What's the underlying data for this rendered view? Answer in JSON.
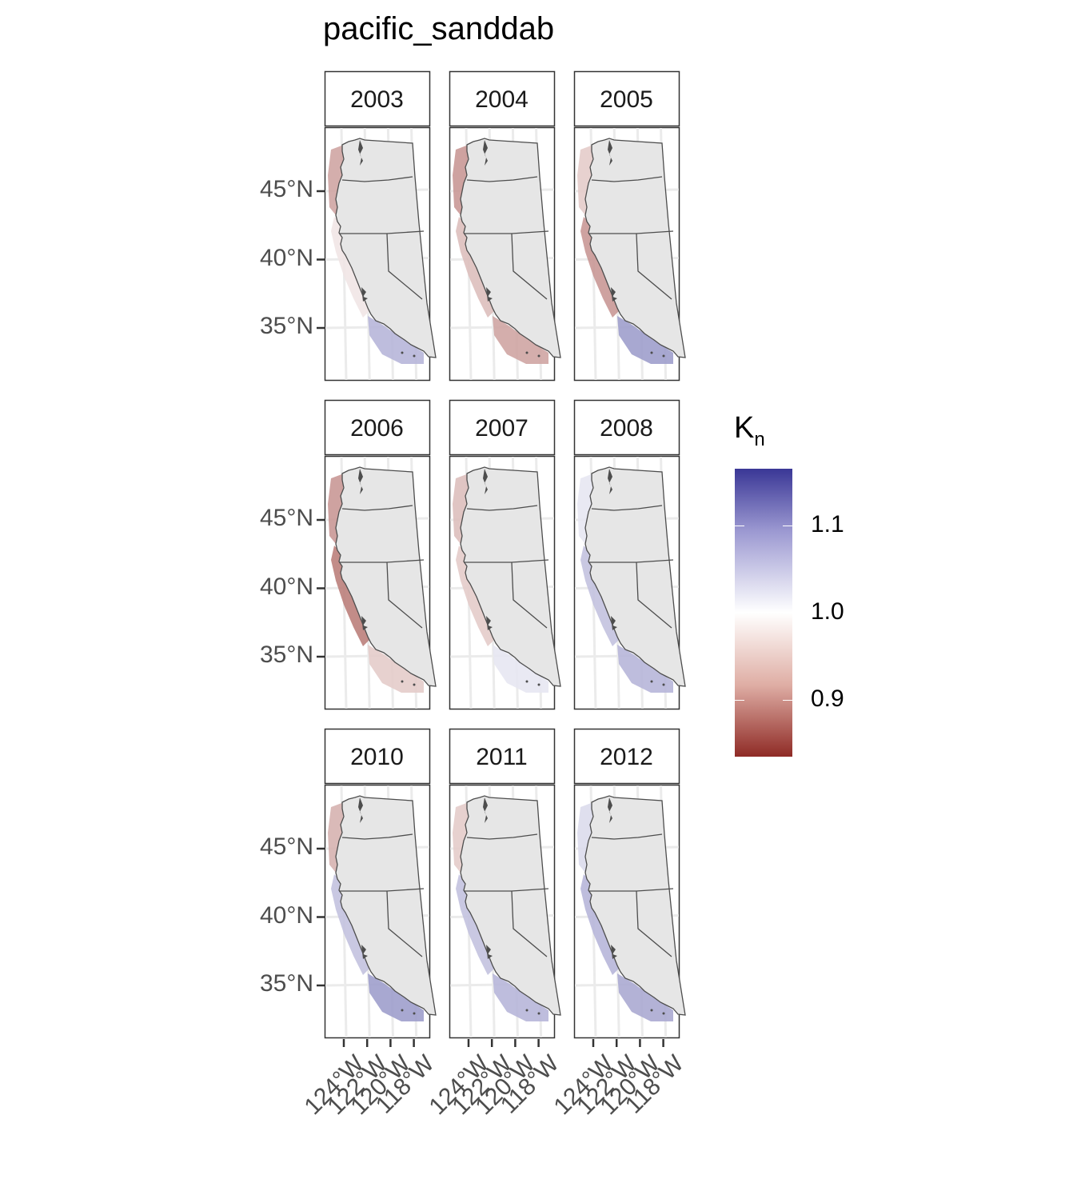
{
  "title": "pacific_sanddab",
  "legend": {
    "title_main": "K",
    "title_sub": "n",
    "ticks": [
      {
        "value": 1.1,
        "label": "1.1"
      },
      {
        "value": 1.0,
        "label": "1.0"
      },
      {
        "value": 0.9,
        "label": "0.9"
      }
    ],
    "range": [
      0.835,
      1.165
    ],
    "colors": {
      "low": "#8f2b26",
      "mid": "#ffffff",
      "high": "#3a3796"
    }
  },
  "axes": {
    "lat_labels": [
      "45°N",
      "40°N",
      "35°N"
    ],
    "lon_labels": [
      "124°W",
      "122°W",
      "120°W",
      "118°W"
    ]
  },
  "chart_data": {
    "type": "heatmap",
    "description_variable": "K_n",
    "lat_ticks": [
      45,
      40,
      35
    ],
    "lon_ticks": [
      -124,
      -122,
      -120,
      -118
    ],
    "facets": [
      {
        "year": "2003",
        "north": 0.93,
        "central": 0.98,
        "south": 1.06
      },
      {
        "year": "2004",
        "north": 0.92,
        "central": 0.95,
        "south": 0.93
      },
      {
        "year": "2005",
        "north": 0.96,
        "central": 0.92,
        "south": 1.08
      },
      {
        "year": "2006",
        "north": 0.92,
        "central": 0.9,
        "south": 0.96
      },
      {
        "year": "2007",
        "north": 0.95,
        "central": 0.96,
        "south": 1.02
      },
      {
        "year": "2008",
        "north": 1.02,
        "central": 1.05,
        "south": 1.06
      },
      {
        "year": "2010",
        "north": 0.94,
        "central": 1.05,
        "south": 1.08
      },
      {
        "year": "2011",
        "north": 0.96,
        "central": 1.05,
        "south": 1.06
      },
      {
        "year": "2012",
        "north": 1.03,
        "central": 1.06,
        "south": 1.07
      }
    ]
  }
}
